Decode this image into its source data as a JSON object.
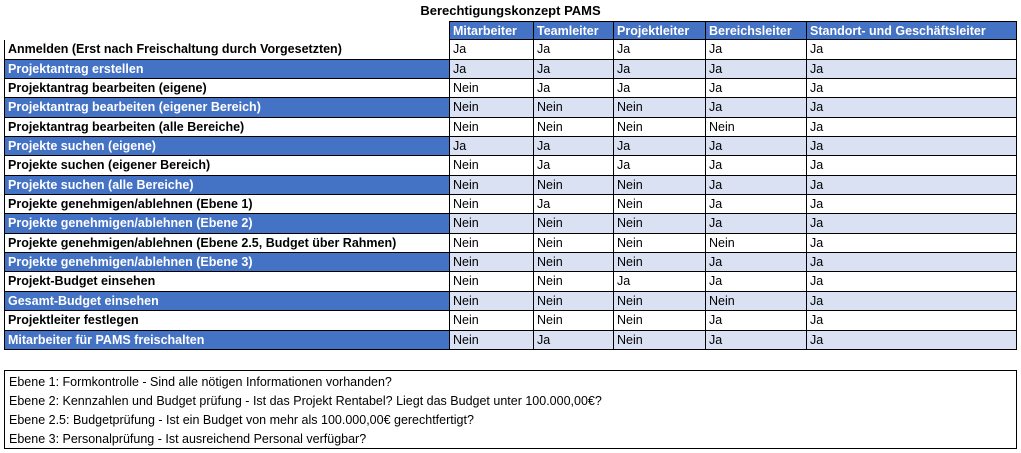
{
  "title": "Berechtigungskonzept PAMS",
  "columns": [
    "Mitarbeiter",
    "Teamleiter",
    "Projektleiter",
    "Bereichsleiter",
    "Standort- und Geschäftsleiter"
  ],
  "rows": [
    {
      "label": "Anmelden (Erst nach Freischaltung durch Vorgesetzten)",
      "values": [
        "Ja",
        "Ja",
        "Ja",
        "Ja",
        "Ja"
      ]
    },
    {
      "label": "Projektantrag erstellen",
      "values": [
        "Ja",
        "Ja",
        "Ja",
        "Ja",
        "Ja"
      ]
    },
    {
      "label": "Projektantrag bearbeiten (eigene)",
      "values": [
        "Nein",
        "Ja",
        "Ja",
        "Ja",
        "Ja"
      ]
    },
    {
      "label": "Projektantrag bearbeiten (eigener Bereich)",
      "values": [
        "Nein",
        "Nein",
        "Nein",
        "Ja",
        "Ja"
      ]
    },
    {
      "label": "Projektantrag bearbeiten (alle Bereiche)",
      "values": [
        "Nein",
        "Nein",
        "Nein",
        "Nein",
        "Ja"
      ]
    },
    {
      "label": "Projekte suchen (eigene)",
      "values": [
        "Ja",
        "Ja",
        "Ja",
        "Ja",
        "Ja"
      ]
    },
    {
      "label": "Projekte suchen (eigener Bereich)",
      "values": [
        "Nein",
        "Ja",
        "Ja",
        "Ja",
        "Ja"
      ]
    },
    {
      "label": "Projekte suchen (alle Bereiche)",
      "values": [
        "Nein",
        "Nein",
        "Nein",
        "Ja",
        "Ja"
      ]
    },
    {
      "label": "Projekte genehmigen/ablehnen (Ebene 1)",
      "values": [
        "Nein",
        "Ja",
        "Nein",
        "Ja",
        "Ja"
      ]
    },
    {
      "label": "Projekte genehmigen/ablehnen (Ebene 2)",
      "values": [
        "Nein",
        "Nein",
        "Nein",
        "Ja",
        "Ja"
      ]
    },
    {
      "label": "Projekte genehmigen/ablehnen (Ebene 2.5, Budget über Rahmen)",
      "values": [
        "Nein",
        "Nein",
        "Nein",
        "Nein",
        "Ja"
      ]
    },
    {
      "label": "Projekte genehmigen/ablehnen (Ebene 3)",
      "values": [
        "Nein",
        "Nein",
        "Nein",
        "Ja",
        "Ja"
      ]
    },
    {
      "label": "Projekt-Budget einsehen",
      "values": [
        "Nein",
        "Nein",
        "Ja",
        "Ja",
        "Ja"
      ]
    },
    {
      "label": "Gesamt-Budget einsehen",
      "values": [
        "Nein",
        "Nein",
        "Nein",
        "Nein",
        "Ja"
      ]
    },
    {
      "label": "Projektleiter festlegen",
      "values": [
        "Nein",
        "Nein",
        "Nein",
        "Ja",
        "Ja"
      ]
    },
    {
      "label": "Mitarbeiter für PAMS freischalten",
      "values": [
        "Nein",
        "Ja",
        "Nein",
        "Ja",
        "Ja"
      ]
    }
  ],
  "notes": [
    "Ebene 1: Formkontrolle - Sind alle nötigen Informationen vorhanden?",
    "Ebene 2: Kennzahlen und Budget prüfung - Ist das Projekt Rentabel? Liegt das Budget unter 100.000,00€?",
    "Ebene 2.5: Budgetprüfung - Ist ein Budget von mehr als 100.000,00€ gerechtfertigt?",
    "Ebene 3: Personalprüfung - Ist ausreichend Personal verfügbar?"
  ]
}
